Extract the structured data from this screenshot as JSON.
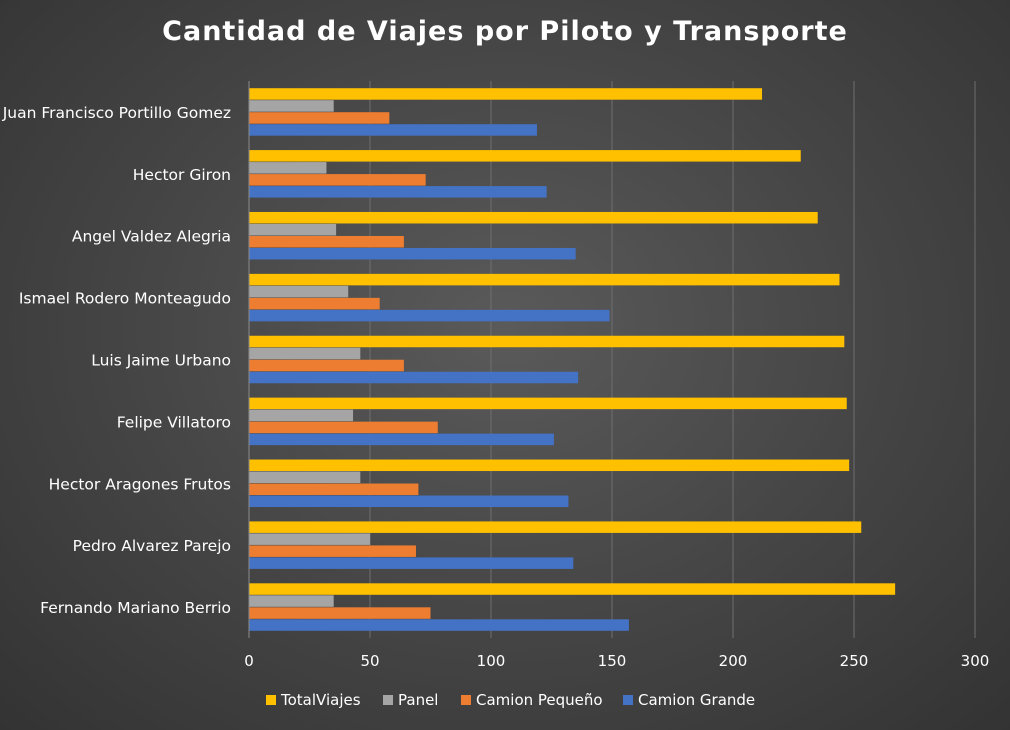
{
  "chart_data": {
    "type": "bar",
    "orientation": "horizontal",
    "title": "Cantidad de Viajes por Piloto y Transporte",
    "xlabel": "",
    "ylabel": "",
    "xlim": [
      0,
      300
    ],
    "x_ticks": [
      0,
      50,
      100,
      150,
      200,
      250,
      300
    ],
    "grid": true,
    "legend_position": "bottom",
    "categories": [
      "Juan Francisco Portillo Gomez",
      "Hector Giron",
      "Angel Valdez Alegria",
      "Ismael Rodero Monteagudo",
      "Luis Jaime Urbano",
      "Felipe Villatoro",
      "Hector Aragones Frutos",
      "Pedro Alvarez Parejo",
      "Fernando Mariano Berrio"
    ],
    "series": [
      {
        "name": "TotalViajes",
        "color": "#ffc000",
        "values": [
          212,
          228,
          235,
          244,
          246,
          247,
          248,
          253,
          267
        ]
      },
      {
        "name": "Panel",
        "color": "#a5a5a5",
        "values": [
          35,
          32,
          36,
          41,
          46,
          43,
          46,
          50,
          35
        ]
      },
      {
        "name": "Camion Pequeño",
        "color": "#ed7d31",
        "values": [
          58,
          73,
          64,
          54,
          64,
          78,
          70,
          69,
          75
        ]
      },
      {
        "name": "Camion Grande",
        "color": "#4472c4",
        "values": [
          119,
          123,
          135,
          149,
          136,
          126,
          132,
          134,
          157
        ]
      }
    ]
  }
}
